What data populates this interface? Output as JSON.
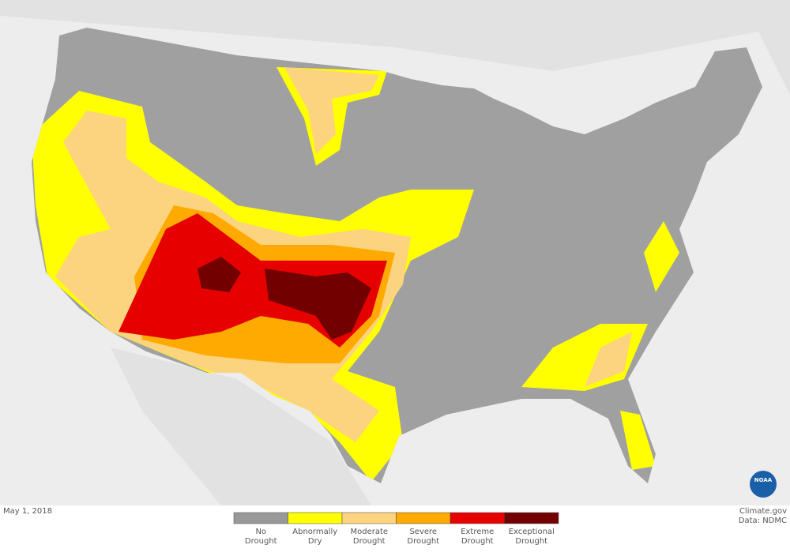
{
  "date": "May 1, 2018",
  "credit": {
    "site": "Climate.gov",
    "source": "Data: NDMC"
  },
  "logo": {
    "text": "NOAA"
  },
  "legend": [
    {
      "lines": [
        "No",
        "Drought"
      ],
      "color": "#999999"
    },
    {
      "lines": [
        "Abnormally",
        "Dry"
      ],
      "color": "#ffff00"
    },
    {
      "lines": [
        "Moderate",
        "Drought"
      ],
      "color": "#fcd37f"
    },
    {
      "lines": [
        "Severe",
        "Drought"
      ],
      "color": "#ffaa00"
    },
    {
      "lines": [
        "Extreme",
        "Drought"
      ],
      "color": "#e60000"
    },
    {
      "lines": [
        "Exceptional",
        "Drought"
      ],
      "color": "#730000"
    }
  ]
}
